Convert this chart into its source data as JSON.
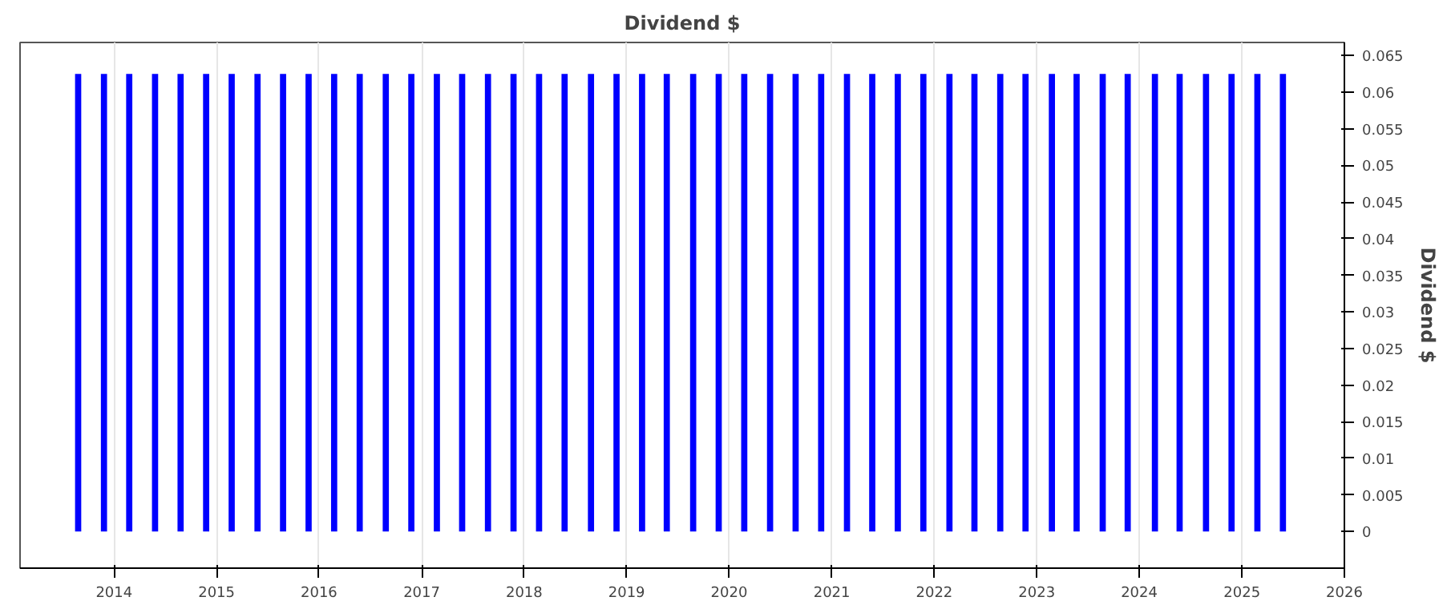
{
  "chart_data": {
    "type": "bar",
    "title": "Dividend $",
    "ylabel": "Dividend $",
    "x": [
      "2013-08-26",
      "2013-11-26",
      "2014-02-24",
      "2014-05-27",
      "2014-08-26",
      "2014-11-25",
      "2015-02-24",
      "2015-05-27",
      "2015-08-26",
      "2015-11-25",
      "2016-02-24",
      "2016-05-25",
      "2016-08-26",
      "2016-11-25",
      "2017-02-24",
      "2017-05-25",
      "2017-08-25",
      "2017-11-24",
      "2018-02-23",
      "2018-05-25",
      "2018-08-27",
      "2018-11-26",
      "2019-02-25",
      "2019-05-24",
      "2019-08-26",
      "2019-11-25",
      "2020-02-24",
      "2020-05-26",
      "2020-08-25",
      "2020-11-24",
      "2021-02-24",
      "2021-05-25",
      "2021-08-24",
      "2021-11-23",
      "2022-02-24",
      "2022-05-24",
      "2022-08-24",
      "2022-11-22",
      "2023-02-24",
      "2023-05-23",
      "2023-08-24",
      "2023-11-21",
      "2024-02-26",
      "2024-05-24",
      "2024-08-26",
      "2024-11-25",
      "2025-02-25",
      "2025-05-27"
    ],
    "values": [
      0.0625,
      0.0625,
      0.0625,
      0.0625,
      0.0625,
      0.0625,
      0.0625,
      0.0625,
      0.0625,
      0.0625,
      0.0625,
      0.0625,
      0.0625,
      0.0625,
      0.0625,
      0.0625,
      0.0625,
      0.0625,
      0.0625,
      0.0625,
      0.0625,
      0.0625,
      0.0625,
      0.0625,
      0.0625,
      0.0625,
      0.0625,
      0.0625,
      0.0625,
      0.0625,
      0.0625,
      0.0625,
      0.0625,
      0.0625,
      0.0625,
      0.0625,
      0.0625,
      0.0625,
      0.0625,
      0.0625,
      0.0625,
      0.0625,
      0.0625,
      0.0625,
      0.0625,
      0.0625,
      0.0625,
      0.0625
    ],
    "color": "#0000ff",
    "xlim": [
      "2013-01-31",
      "2026-01-01"
    ],
    "xticks": [
      "2014",
      "2015",
      "2016",
      "2017",
      "2018",
      "2019",
      "2020",
      "2021",
      "2022",
      "2023",
      "2024",
      "2025",
      "2026"
    ],
    "ylim": [
      -0.005,
      0.0668
    ],
    "yticks": [
      0,
      0.005,
      0.01,
      0.015,
      0.02,
      0.025,
      0.03,
      0.035,
      0.04,
      0.045,
      0.05,
      0.055,
      0.06,
      0.065
    ],
    "grid": "x"
  }
}
